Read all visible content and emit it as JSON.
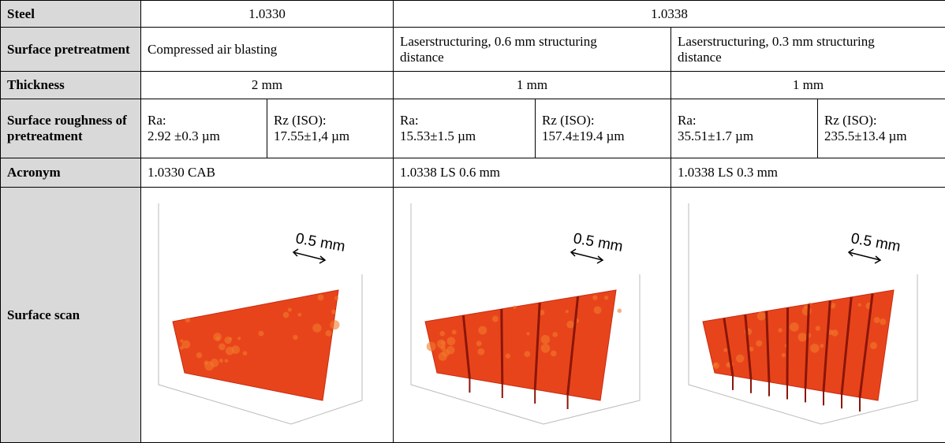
{
  "table": {
    "steel": {
      "header": "Steel",
      "cells": [
        "1.0330",
        "1.0338"
      ]
    },
    "pretreatment": {
      "header": "Surface pretreatment",
      "cells": [
        "Compressed air blasting",
        "Laserstructuring, 0.6 mm structuring distance",
        "Laserstructuring, 0.3 mm structuring distance"
      ]
    },
    "thickness": {
      "header": "Thickness",
      "cells": [
        "2 mm",
        "1 mm",
        "1 mm"
      ]
    },
    "roughness": {
      "header": "Surface roughness of pretreatment",
      "cells": [
        [
          "Ra:",
          "2.92 ±0.3 µm"
        ],
        [
          "Rz (ISO):",
          "17.55±1,4 µm"
        ],
        [
          "Ra:",
          "15.53±1.5 µm"
        ],
        [
          "Rz (ISO):",
          "157.4±19.4 µm"
        ],
        [
          "Ra:",
          "35.51±1.7 µm"
        ],
        [
          "Rz (ISO):",
          "235.5±13.4 µm"
        ]
      ]
    },
    "acronym": {
      "header": "Acronym",
      "cells": [
        "1.0330 CAB",
        "1.0338 LS 0.6 mm",
        "1.0338 LS 0.3 mm"
      ]
    },
    "scan": {
      "header": "Surface scan",
      "scale_labels": [
        "0.5 mm",
        "0.5 mm",
        "0.5 mm"
      ]
    }
  }
}
